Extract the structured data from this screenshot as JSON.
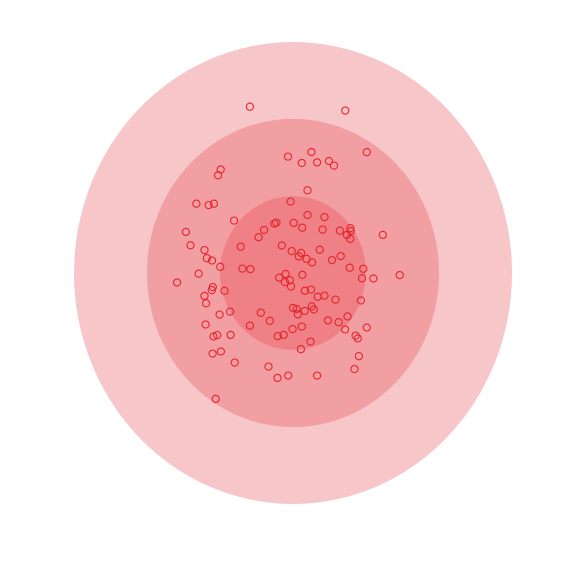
{
  "chart_data": {
    "type": "scatter",
    "title": "",
    "xlabel": "",
    "ylabel": "",
    "grid": false,
    "legend": "none",
    "xlim": [
      -1,
      1
    ],
    "ylim": [
      -1,
      1
    ],
    "rings": [
      {
        "name": "",
        "radius": 1.0,
        "color": "#f6c6c9"
      },
      {
        "name": "",
        "radius": 0.667,
        "color": "#f29fa3"
      },
      {
        "name": "",
        "radius": 0.333,
        "color": "#ef8085"
      }
    ],
    "marker": {
      "shape": "open-circle",
      "color": "#e8232b"
    },
    "series": [
      {
        "name": "",
        "x": [
          -0.197,
          0.239,
          -0.023,
          0.164,
          0.187,
          0.337,
          0.084,
          0.04,
          0.11,
          0.066,
          -0.361,
          -0.33,
          -0.385,
          -0.441,
          -0.269,
          -0.085,
          -0.132,
          -0.076,
          0.003,
          0.042,
          -0.011,
          0.066,
          0.144,
          0.135,
          0.214,
          0.264,
          0.246,
          0.261,
          0.41,
          -0.342,
          -0.489,
          -0.239,
          -0.157,
          -0.051,
          -0.006,
          0.037,
          0.122,
          0.026,
          0.062,
          0.087,
          0.262,
          -0.404,
          -0.529,
          -0.468,
          -0.37,
          -0.393,
          -0.431,
          -0.371,
          -0.313,
          -0.014,
          -0.034,
          0.043,
          0.178,
          0.321,
          0.315,
          0.367,
          0.218,
          0.259,
          0.487,
          -0.332,
          -0.194,
          -0.231,
          -0.063,
          -0.037,
          -0.009,
          0.054,
          0.082,
          0.144,
          0.113,
          0.086,
          0.194,
          0.249,
          0.31,
          -0.397,
          -0.366,
          -0.404,
          -0.335,
          -0.287,
          -0.147,
          -0.106,
          0.0,
          0.017,
          0.022,
          0.04,
          0.095,
          0.054,
          0.16,
          0.208,
          0.238,
          0.286,
          -0.399,
          -0.363,
          -0.346,
          -0.285,
          -0.197,
          -0.07,
          -0.043,
          -0.002,
          0.036,
          0.08,
          -0.367,
          -0.329,
          -0.266,
          -0.112,
          -0.022,
          0.11,
          0.296,
          0.337,
          0.281,
          0.301,
          -0.071,
          -0.353
        ],
        "y": [
          0.72,
          0.703,
          0.504,
          0.485,
          0.465,
          0.523,
          0.524,
          0.476,
          0.479,
          0.358,
          0.3,
          0.448,
          0.294,
          0.3,
          0.227,
          0.214,
          0.186,
          0.218,
          0.217,
          0.196,
          0.309,
          0.251,
          0.242,
          0.188,
          0.183,
          0.182,
          0.165,
          0.148,
          0.165,
          0.423,
          0.178,
          0.114,
          0.155,
          0.119,
          0.095,
          0.087,
          0.101,
          0.072,
          0.061,
          0.046,
          0.194,
          0.099,
          -0.041,
          0.12,
          0.054,
          0.064,
          -0.003,
          -0.074,
          -0.077,
          -0.031,
          -0.004,
          -0.008,
          0.056,
          0.018,
          -0.023,
          -0.024,
          0.073,
          0.023,
          -0.009,
          0.027,
          0.017,
          0.019,
          -0.02,
          -0.04,
          -0.059,
          -0.077,
          -0.072,
          -0.098,
          -0.103,
          -0.144,
          -0.115,
          -0.188,
          -0.119,
          -0.131,
          -0.061,
          -0.099,
          -0.18,
          -0.167,
          -0.172,
          -0.207,
          -0.151,
          -0.156,
          -0.179,
          -0.232,
          -0.158,
          -0.164,
          -0.205,
          -0.213,
          -0.244,
          -0.271,
          -0.223,
          -0.275,
          -0.269,
          -0.268,
          -0.228,
          -0.273,
          -0.268,
          -0.243,
          -0.33,
          -0.297,
          -0.349,
          -0.34,
          -0.388,
          -0.405,
          -0.444,
          -0.444,
          -0.283,
          -0.236,
          -0.416,
          -0.36,
          -0.454,
          -0.545
        ]
      }
    ]
  }
}
